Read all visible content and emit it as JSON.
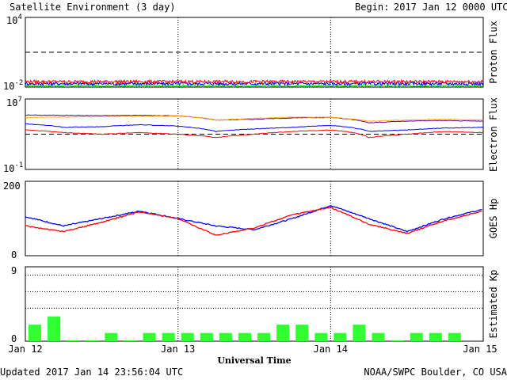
{
  "header": {
    "title": "Satellite Environment (3 day)",
    "begin_label": "Begin:",
    "begin_value": "2017 Jan 12 0000 UTC"
  },
  "footer": {
    "updated": "Updated 2017 Jan 14 23:56:04 UTC",
    "credit": "NOAA/SWPC Boulder, CO USA"
  },
  "x_axis": {
    "label": "Universal Time",
    "ticks": [
      "Jan 12",
      "Jan 13",
      "Jan 14",
      "Jan 15"
    ],
    "range_hours": [
      0,
      72
    ]
  },
  "colors": {
    "red": "#ff0000",
    "blue": "#0000ff",
    "green": "#00ff00",
    "orange": "#ffa500",
    "purple": "#6000a0",
    "kp_bar": "#33ff33"
  },
  "chart_data": [
    {
      "type": "line",
      "ylabel": "Proton Flux",
      "yscale": "log",
      "ylim": [
        0.01,
        10000
      ],
      "tick_base": [
        "10",
        "10"
      ],
      "tick_exp": [
        "4",
        "-2"
      ],
      "threshold": 10,
      "series": [
        {
          "color": "red",
          "level": 0.03
        },
        {
          "color": "blue",
          "level": 0.02
        },
        {
          "color": "green",
          "level": 0.013
        }
      ]
    },
    {
      "type": "line",
      "ylabel": "Electron Flux",
      "yscale": "log",
      "ylim": [
        0.1,
        10000000
      ],
      "tick_base": [
        "10",
        "10"
      ],
      "tick_exp": [
        "7",
        "-1"
      ],
      "threshold": 1000,
      "x": [
        0,
        6,
        12,
        18,
        24,
        30,
        36,
        42,
        48,
        54,
        60,
        66,
        72
      ],
      "series": [
        {
          "color": "purple",
          "values": [
            150000,
            140000,
            130000,
            140000,
            120000,
            40000,
            50000,
            70000,
            80000,
            20000,
            30000,
            35000,
            30000
          ]
        },
        {
          "color": "orange",
          "values": [
            80000,
            90000,
            100000,
            110000,
            120000,
            40000,
            60000,
            90000,
            80000,
            30000,
            40000,
            50000,
            40000
          ]
        },
        {
          "color": "blue",
          "values": [
            15000,
            6000,
            7000,
            12000,
            8000,
            2000,
            4000,
            6000,
            10000,
            2000,
            3000,
            5000,
            6000
          ]
        },
        {
          "color": "red",
          "values": [
            3000,
            1500,
            1000,
            1500,
            1000,
            400,
            1000,
            2000,
            3000,
            400,
            1000,
            2000,
            1500
          ]
        }
      ]
    },
    {
      "type": "line",
      "ylabel": "GOES Hp",
      "ylim": [
        0,
        200
      ],
      "ticks": [
        "200",
        "0"
      ],
      "x": [
        0,
        6,
        12,
        18,
        24,
        30,
        36,
        42,
        48,
        54,
        60,
        66,
        72
      ],
      "series": [
        {
          "color": "blue",
          "values": [
            105,
            80,
            100,
            120,
            100,
            80,
            70,
            100,
            135,
            100,
            65,
            100,
            125
          ]
        },
        {
          "color": "red",
          "values": [
            80,
            65,
            90,
            118,
            100,
            55,
            75,
            110,
            130,
            85,
            60,
            95,
            120
          ]
        }
      ]
    },
    {
      "type": "bar",
      "ylabel": "Estimated Kp",
      "ylim": [
        0,
        9
      ],
      "ticks": [
        "9",
        "0"
      ],
      "dotted_levels": [
        4,
        6,
        8
      ],
      "bar_width_hours": 3,
      "x": [
        0,
        3,
        6,
        9,
        12,
        15,
        18,
        21,
        24,
        27,
        30,
        33,
        36,
        39,
        42,
        45,
        48,
        51,
        54,
        57,
        60,
        63,
        66,
        69
      ],
      "values": [
        2,
        3,
        0.1,
        0.1,
        1,
        0.1,
        1,
        1,
        1,
        1,
        1,
        1,
        1,
        2,
        2,
        1,
        1,
        2,
        1,
        0.1,
        1,
        1,
        1,
        0
      ]
    }
  ]
}
